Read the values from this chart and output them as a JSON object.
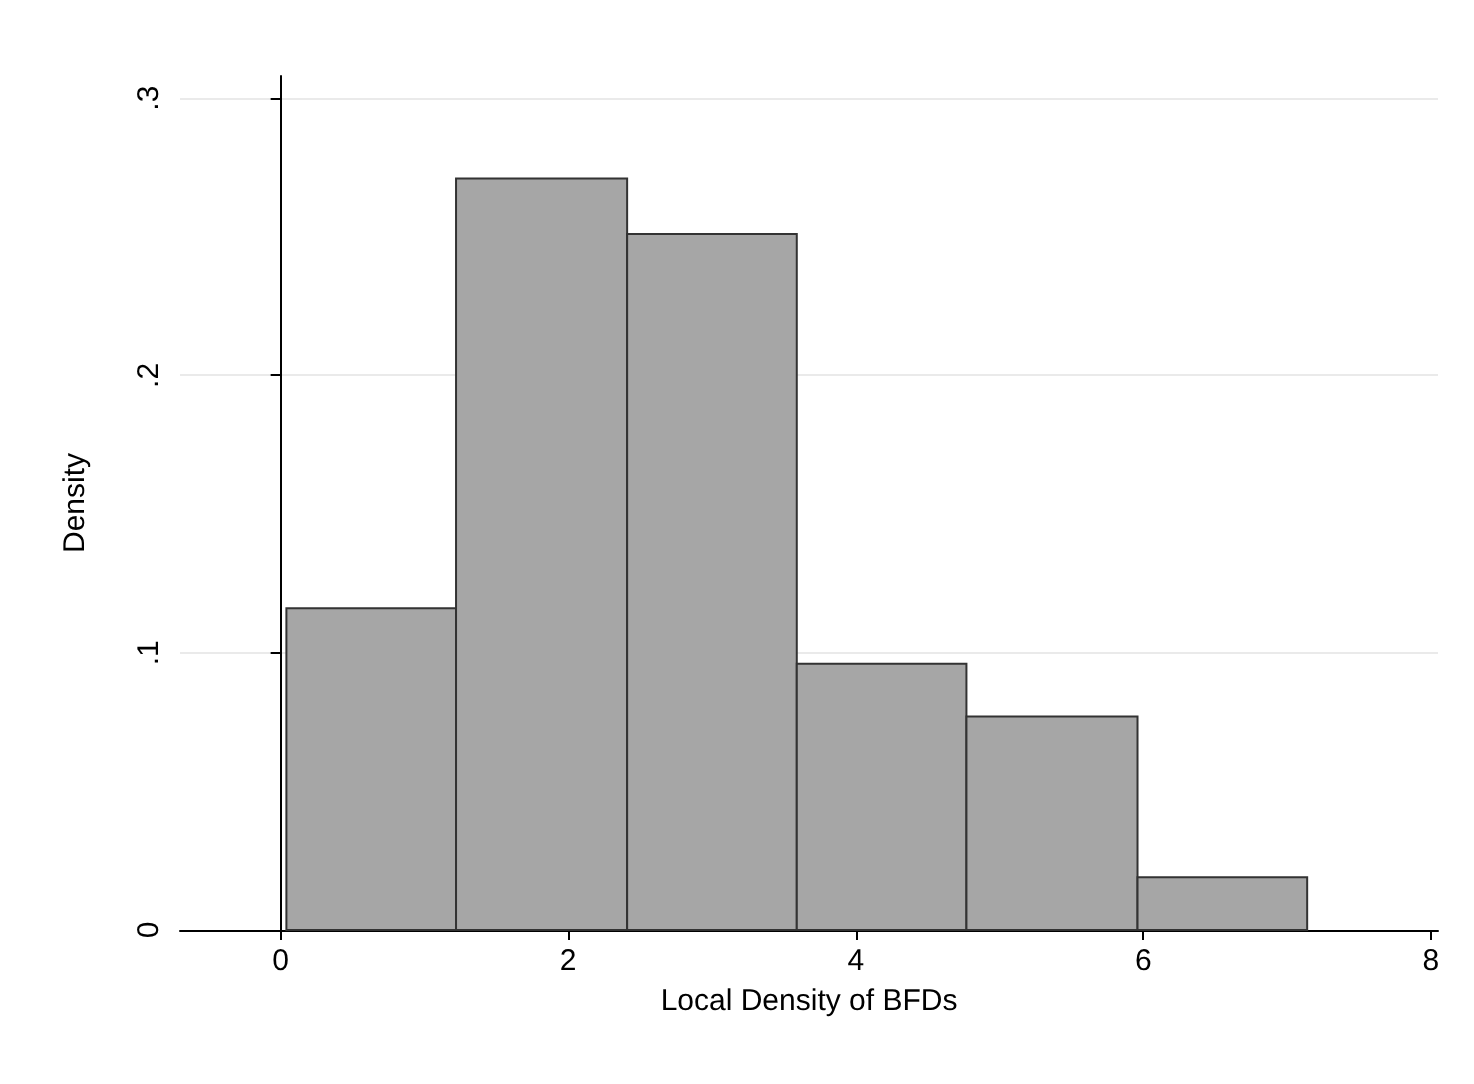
{
  "chart_data": {
    "type": "histogram",
    "xlabel": "Local Density of BFDs",
    "ylabel": "Density",
    "bins": [
      0.04,
      1.22,
      2.41,
      3.59,
      4.77,
      5.96,
      7.14
    ],
    "values": [
      0.116,
      0.271,
      0.251,
      0.096,
      0.077,
      0.019
    ],
    "color": "#a6a6a6",
    "xlim": [
      -0.7,
      8.05
    ],
    "xticks": [
      0,
      2,
      4,
      6,
      8
    ],
    "ylim": [
      0,
      0.308
    ],
    "yticks": [
      {
        "value": 0,
        "label": "0"
      },
      {
        "value": 0.1,
        "label": ".1"
      },
      {
        "value": 0.2,
        "label": ".2"
      },
      {
        "value": 0.3,
        "label": ".3"
      }
    ],
    "grid": "y"
  }
}
